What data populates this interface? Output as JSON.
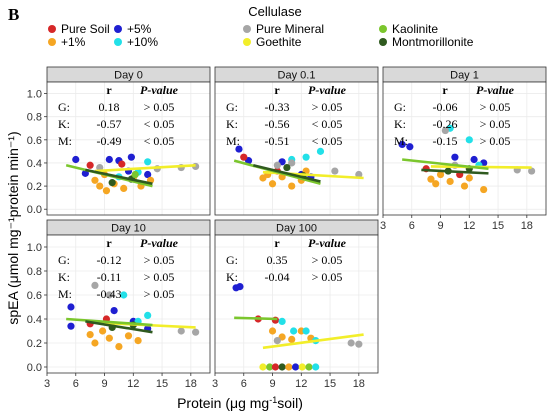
{
  "panel_label": "B",
  "legend": {
    "title": "Cellulase",
    "items": [
      {
        "label": "Pure Soil",
        "color": "#d62728",
        "row": 0,
        "col": 0
      },
      {
        "label": "+1%",
        "color": "#f5a623",
        "row": 1,
        "col": 0
      },
      {
        "label": "+5%",
        "color": "#1f1fd1",
        "row": 0,
        "col": 1
      },
      {
        "label": "+10%",
        "color": "#22e0e8",
        "row": 1,
        "col": 1
      },
      {
        "label": "Pure Mineral",
        "color": "#a6a6a6",
        "row": 0,
        "col": 2
      },
      {
        "label": "Goethite",
        "color": "#f2ee2a",
        "row": 1,
        "col": 2
      },
      {
        "label": "Kaolinite",
        "color": "#7bc62d",
        "row": 0,
        "col": 3
      },
      {
        "label": "Montmorillonite",
        "color": "#2f5a1f",
        "row": 1,
        "col": 3
      }
    ]
  },
  "colors": {
    "strip": "#d9d9d9",
    "grid": "#ebebeb",
    "border": "#333333",
    "goethite_line": "#f2ee2a",
    "kaolinite_line": "#7bc62d",
    "montmorillonite_line": "#2f5a1f"
  },
  "chart_data": {
    "type": "scatter",
    "xlabel": "Protein (μg mg⁻¹soil)",
    "ylabel": "spEA (μmol mg⁻¹protein min⁻¹)",
    "xlim": [
      3,
      20
    ],
    "ylim": [
      -0.05,
      1.1
    ],
    "xticks": [
      3,
      6,
      9,
      12,
      15,
      18
    ],
    "yticks": [
      0.0,
      0.2,
      0.4,
      0.6,
      0.8,
      1.0
    ],
    "stat_headers": {
      "r": "r",
      "p": "P-value"
    },
    "panels": [
      {
        "title": "Day 0",
        "stats": [
          {
            "label": "G:",
            "r": "0.18",
            "p": "> 0.05"
          },
          {
            "label": "K:",
            "r": "-0.57",
            "p": "< 0.05"
          },
          {
            "label": "M:",
            "r": "-0.49",
            "p": "< 0.05"
          }
        ],
        "lines": {
          "goethite": [
            [
              8,
              0.33
            ],
            [
              18.5,
              0.38
            ]
          ],
          "kaolinite": [
            [
              5,
              0.38
            ],
            [
              14,
              0.2
            ]
          ],
          "montmorillonite": [
            [
              7,
              0.34
            ],
            [
              14,
              0.22
            ]
          ]
        },
        "points": [
          {
            "x": 6,
            "y": 0.43,
            "g": "+5%"
          },
          {
            "x": 9.5,
            "y": 0.43,
            "g": "+5%"
          },
          {
            "x": 10.5,
            "y": 0.42,
            "g": "+5%"
          },
          {
            "x": 11.8,
            "y": 0.45,
            "g": "+5%"
          },
          {
            "x": 7,
            "y": 0.31,
            "g": "+5%"
          },
          {
            "x": 11.5,
            "y": 0.33,
            "g": "+5%"
          },
          {
            "x": 13.5,
            "y": 0.3,
            "g": "+5%"
          },
          {
            "x": 7.5,
            "y": 0.38,
            "g": "Pure Soil"
          },
          {
            "x": 10.8,
            "y": 0.39,
            "g": "Pure Soil"
          },
          {
            "x": 8,
            "y": 0.25,
            "g": "+1%"
          },
          {
            "x": 8.5,
            "y": 0.2,
            "g": "+1%"
          },
          {
            "x": 9,
            "y": 0.3,
            "g": "+1%"
          },
          {
            "x": 10,
            "y": 0.22,
            "g": "+1%"
          },
          {
            "x": 11,
            "y": 0.18,
            "g": "+1%"
          },
          {
            "x": 12,
            "y": 0.27,
            "g": "+1%"
          },
          {
            "x": 12.8,
            "y": 0.2,
            "g": "+1%"
          },
          {
            "x": 13.8,
            "y": 0.25,
            "g": "+1%"
          },
          {
            "x": 9.2,
            "y": 0.16,
            "g": "+1%"
          },
          {
            "x": 10.5,
            "y": 0.28,
            "g": "+10%"
          },
          {
            "x": 12.5,
            "y": 0.32,
            "g": "+10%"
          },
          {
            "x": 13.5,
            "y": 0.41,
            "g": "+10%"
          },
          {
            "x": 8.5,
            "y": 0.36,
            "g": "Pure Mineral"
          },
          {
            "x": 14.5,
            "y": 0.35,
            "g": "Pure Mineral"
          },
          {
            "x": 17,
            "y": 0.36,
            "g": "Pure Mineral"
          },
          {
            "x": 18.5,
            "y": 0.37,
            "g": "Pure Mineral"
          },
          {
            "x": 9.8,
            "y": 0.23,
            "g": "Montmorillonite"
          },
          {
            "x": 11.8,
            "y": 0.26,
            "g": "Montmorillonite"
          },
          {
            "x": 12.2,
            "y": 0.3,
            "g": "Kaolinite"
          }
        ]
      },
      {
        "title": "Day 0.1",
        "stats": [
          {
            "label": "G:",
            "r": "-0.33",
            "p": "> 0.05"
          },
          {
            "label": "K:",
            "r": "-0.56",
            "p": "< 0.05"
          },
          {
            "label": "M:",
            "r": "-0.51",
            "p": "< 0.05"
          }
        ],
        "lines": {
          "goethite": [
            [
              8,
              0.32
            ],
            [
              18.5,
              0.27
            ]
          ],
          "kaolinite": [
            [
              5,
              0.42
            ],
            [
              14,
              0.22
            ]
          ],
          "montmorillonite": [
            [
              7,
              0.38
            ],
            [
              14,
              0.24
            ]
          ]
        },
        "points": [
          {
            "x": 5.5,
            "y": 0.52,
            "g": "+5%"
          },
          {
            "x": 6.5,
            "y": 0.42,
            "g": "+5%"
          },
          {
            "x": 10,
            "y": 0.41,
            "g": "+5%"
          },
          {
            "x": 12,
            "y": 0.3,
            "g": "+5%"
          },
          {
            "x": 13,
            "y": 0.28,
            "g": "+5%"
          },
          {
            "x": 6,
            "y": 0.45,
            "g": "Pure Soil"
          },
          {
            "x": 9.5,
            "y": 0.33,
            "g": "Pure Soil"
          },
          {
            "x": 8,
            "y": 0.27,
            "g": "+1%"
          },
          {
            "x": 8.5,
            "y": 0.3,
            "g": "+1%"
          },
          {
            "x": 9,
            "y": 0.22,
            "g": "+1%"
          },
          {
            "x": 10,
            "y": 0.28,
            "g": "+1%"
          },
          {
            "x": 11,
            "y": 0.2,
            "g": "+1%"
          },
          {
            "x": 12,
            "y": 0.25,
            "g": "+1%"
          },
          {
            "x": 12.5,
            "y": 0.33,
            "g": "+1%"
          },
          {
            "x": 11,
            "y": 0.43,
            "g": "+10%"
          },
          {
            "x": 12.5,
            "y": 0.45,
            "g": "+10%"
          },
          {
            "x": 14,
            "y": 0.5,
            "g": "+10%"
          },
          {
            "x": 9.5,
            "y": 0.38,
            "g": "Pure Mineral"
          },
          {
            "x": 11,
            "y": 0.4,
            "g": "Pure Mineral"
          },
          {
            "x": 15.5,
            "y": 0.33,
            "g": "Pure Mineral"
          },
          {
            "x": 18,
            "y": 0.3,
            "g": "Pure Mineral"
          },
          {
            "x": 10.5,
            "y": 0.36,
            "g": "Montmorillonite"
          },
          {
            "x": 12.2,
            "y": 0.29,
            "g": "Montmorillonite"
          }
        ]
      },
      {
        "title": "Day 1",
        "stats": [
          {
            "label": "G:",
            "r": "-0.06",
            "p": "> 0.05"
          },
          {
            "label": "K:",
            "r": "-0.26",
            "p": "> 0.05"
          },
          {
            "label": "M:",
            "r": "-0.15",
            "p": "> 0.05"
          }
        ],
        "lines": {
          "goethite": [
            [
              8,
              0.37
            ],
            [
              18.5,
              0.36
            ]
          ],
          "kaolinite": [
            [
              5,
              0.43
            ],
            [
              14,
              0.35
            ]
          ],
          "montmorillonite": [
            [
              7,
              0.34
            ],
            [
              14,
              0.31
            ]
          ]
        },
        "points": [
          {
            "x": 5,
            "y": 0.56,
            "g": "+5%"
          },
          {
            "x": 5.8,
            "y": 0.54,
            "g": "+5%"
          },
          {
            "x": 10.5,
            "y": 0.45,
            "g": "+5%"
          },
          {
            "x": 12.5,
            "y": 0.43,
            "g": "+5%"
          },
          {
            "x": 13.5,
            "y": 0.4,
            "g": "+5%"
          },
          {
            "x": 7.5,
            "y": 0.35,
            "g": "Pure Soil"
          },
          {
            "x": 11,
            "y": 0.3,
            "g": "Pure Soil"
          },
          {
            "x": 8,
            "y": 0.26,
            "g": "+1%"
          },
          {
            "x": 8.5,
            "y": 0.22,
            "g": "+1%"
          },
          {
            "x": 9,
            "y": 0.3,
            "g": "+1%"
          },
          {
            "x": 10,
            "y": 0.24,
            "g": "+1%"
          },
          {
            "x": 11.5,
            "y": 0.2,
            "g": "+1%"
          },
          {
            "x": 12,
            "y": 0.27,
            "g": "+1%"
          },
          {
            "x": 13.5,
            "y": 0.17,
            "g": "+1%"
          },
          {
            "x": 10,
            "y": 0.7,
            "g": "+10%"
          },
          {
            "x": 12,
            "y": 0.6,
            "g": "+10%"
          },
          {
            "x": 13,
            "y": 0.38,
            "g": "+10%"
          },
          {
            "x": 9.5,
            "y": 0.68,
            "g": "Pure Mineral"
          },
          {
            "x": 10.5,
            "y": 0.38,
            "g": "Pure Mineral"
          },
          {
            "x": 17,
            "y": 0.34,
            "g": "Pure Mineral"
          },
          {
            "x": 18.5,
            "y": 0.33,
            "g": "Pure Mineral"
          },
          {
            "x": 9.8,
            "y": 0.33,
            "g": "Montmorillonite"
          },
          {
            "x": 12,
            "y": 0.35,
            "g": "Montmorillonite"
          }
        ]
      },
      {
        "title": "Day 10",
        "stats": [
          {
            "label": "G:",
            "r": "-0.12",
            "p": "> 0.05"
          },
          {
            "label": "K:",
            "r": "-0.11",
            "p": "> 0.05"
          },
          {
            "label": "M:",
            "r": "-0.43",
            "p": "> 0.05"
          }
        ],
        "lines": {
          "goethite": [
            [
              8,
              0.37
            ],
            [
              18.5,
              0.33
            ]
          ],
          "kaolinite": [
            [
              5,
              0.4
            ],
            [
              14,
              0.35
            ]
          ],
          "montmorillonite": [
            [
              7,
              0.38
            ],
            [
              14,
              0.29
            ]
          ]
        },
        "points": [
          {
            "x": 5.5,
            "y": 0.5,
            "g": "+5%"
          },
          {
            "x": 5.5,
            "y": 0.34,
            "g": "+5%"
          },
          {
            "x": 10,
            "y": 0.47,
            "g": "+5%"
          },
          {
            "x": 12,
            "y": 0.38,
            "g": "+5%"
          },
          {
            "x": 13.5,
            "y": 0.32,
            "g": "+5%"
          },
          {
            "x": 7.5,
            "y": 0.36,
            "g": "Pure Soil"
          },
          {
            "x": 9.2,
            "y": 0.4,
            "g": "Pure Soil"
          },
          {
            "x": 7.5,
            "y": 0.27,
            "g": "+1%"
          },
          {
            "x": 8,
            "y": 0.2,
            "g": "+1%"
          },
          {
            "x": 8.8,
            "y": 0.3,
            "g": "+1%"
          },
          {
            "x": 9.5,
            "y": 0.24,
            "g": "+1%"
          },
          {
            "x": 10.5,
            "y": 0.17,
            "g": "+1%"
          },
          {
            "x": 11.5,
            "y": 0.26,
            "g": "+1%"
          },
          {
            "x": 12.5,
            "y": 0.22,
            "g": "+1%"
          },
          {
            "x": 11,
            "y": 0.6,
            "g": "+10%"
          },
          {
            "x": 12.5,
            "y": 0.38,
            "g": "+10%"
          },
          {
            "x": 13.5,
            "y": 0.43,
            "g": "+10%"
          },
          {
            "x": 8,
            "y": 0.68,
            "g": "Pure Mineral"
          },
          {
            "x": 9.5,
            "y": 0.6,
            "g": "Pure Mineral"
          },
          {
            "x": 17,
            "y": 0.3,
            "g": "Pure Mineral"
          },
          {
            "x": 18.5,
            "y": 0.29,
            "g": "Pure Mineral"
          },
          {
            "x": 9.8,
            "y": 0.33,
            "g": "Montmorillonite"
          },
          {
            "x": 12,
            "y": 0.35,
            "g": "Montmorillonite"
          }
        ]
      },
      {
        "title": "Day 100",
        "stats": [
          {
            "label": "G:",
            "r": "0.35",
            "p": "> 0.05"
          },
          {
            "label": "K:",
            "r": "-0.04",
            "p": "> 0.05"
          }
        ],
        "lines": {
          "goethite": [
            [
              8,
              0.16
            ],
            [
              18.5,
              0.27
            ]
          ],
          "kaolinite": [
            [
              5,
              0.41
            ],
            [
              9.5,
              0.4
            ]
          ]
        },
        "points": [
          {
            "x": 5.2,
            "y": 0.66,
            "g": "+5%"
          },
          {
            "x": 5.6,
            "y": 0.67,
            "g": "+5%"
          },
          {
            "x": 7.5,
            "y": 0.4,
            "g": "Pure Soil"
          },
          {
            "x": 9.3,
            "y": 0.39,
            "g": "Pure Soil"
          },
          {
            "x": 9,
            "y": 0.3,
            "g": "+1%"
          },
          {
            "x": 10,
            "y": 0.25,
            "g": "+1%"
          },
          {
            "x": 11,
            "y": 0.23,
            "g": "+1%"
          },
          {
            "x": 12,
            "y": 0.3,
            "g": "+1%"
          },
          {
            "x": 13,
            "y": 0.24,
            "g": "+1%"
          },
          {
            "x": 10,
            "y": 0.38,
            "g": "+10%"
          },
          {
            "x": 11.2,
            "y": 0.3,
            "g": "+10%"
          },
          {
            "x": 12.5,
            "y": 0.3,
            "g": "+10%"
          },
          {
            "x": 13.5,
            "y": 0.22,
            "g": "+10%"
          },
          {
            "x": 9.5,
            "y": 0.22,
            "g": "Pure Mineral"
          },
          {
            "x": 17.2,
            "y": 0.2,
            "g": "Pure Mineral"
          },
          {
            "x": 18,
            "y": 0.19,
            "g": "Pure Mineral"
          },
          {
            "x": 8,
            "y": 0.0,
            "g": "Goethite"
          },
          {
            "x": 8.7,
            "y": 0.0,
            "g": "Kaolinite"
          },
          {
            "x": 9.3,
            "y": 0.0,
            "g": "Pure Soil"
          },
          {
            "x": 10,
            "y": 0.0,
            "g": "Montmorillonite"
          },
          {
            "x": 10.7,
            "y": 0.0,
            "g": "+1%"
          },
          {
            "x": 11.4,
            "y": 0.0,
            "g": "+5%"
          },
          {
            "x": 12.1,
            "y": 0.0,
            "g": "Goethite"
          },
          {
            "x": 12.8,
            "y": 0.0,
            "g": "Kaolinite"
          },
          {
            "x": 13.5,
            "y": 0.0,
            "g": "+10%"
          }
        ]
      }
    ]
  }
}
